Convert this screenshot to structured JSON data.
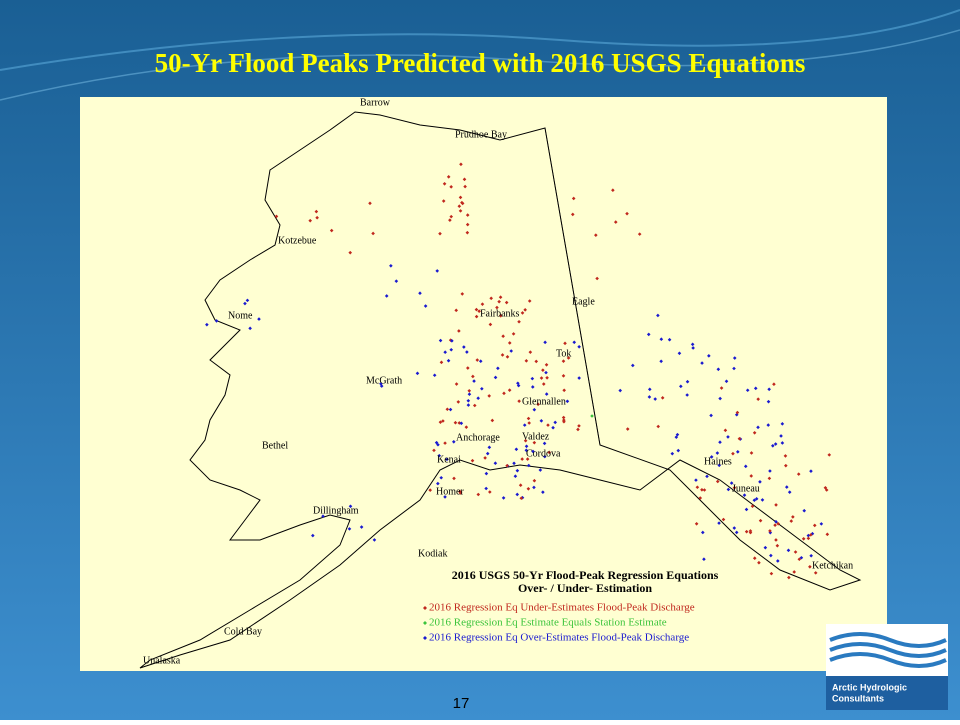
{
  "header": {
    "title": "50-Yr Flood Peaks Predicted with 2016 USGS Equations"
  },
  "map": {
    "place_labels": [
      "Barrow",
      "Prudhoe Bay",
      "Kotzebue",
      "Nome",
      "Fairbanks",
      "Eagle",
      "Tok",
      "McGrath",
      "Glennallen",
      "Anchorage",
      "Valdez",
      "Bethel",
      "Kenai",
      "Cordova",
      "Homer",
      "Haines",
      "Juneau",
      "Dillingham",
      "Kodiak",
      "Ketchikan",
      "Cold Bay",
      "Unalaska"
    ]
  },
  "legend": {
    "title": [
      "2016 USGS 50-Yr Flood-Peak Regression Equations",
      "Over- / Under- Estimation"
    ],
    "items": [
      {
        "label": "2016 Regression Eq Under-Estimates Flood-Peak Discharge",
        "color": "#c0281e"
      },
      {
        "label": "2016 Regression Eq Estimate Equals Station Estimate",
        "color": "#3cc43c"
      },
      {
        "label": "2016 Regression Eq Over-Estimates Flood-Peak Discharge",
        "color": "#1a1ad0"
      }
    ]
  },
  "footer": {
    "page_number": "17"
  },
  "logo": {
    "lines": [
      "Arctic Hydrologic",
      "Consultants"
    ]
  }
}
